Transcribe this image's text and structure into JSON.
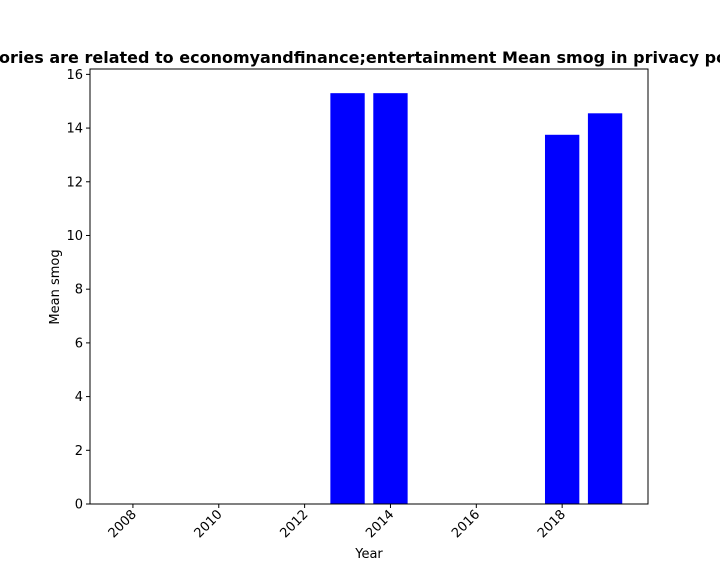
{
  "chart_data": {
    "type": "bar",
    "title": "Categories are related to economyandfinance;entertainment Mean smog in privacy policies",
    "xlabel": "Year",
    "ylabel": "Mean smog",
    "x": [
      2013,
      2014,
      2018,
      2019
    ],
    "values": [
      15.3,
      15.3,
      13.75,
      14.55
    ],
    "xlim": [
      2007.0,
      2020.0
    ],
    "ylim": [
      0,
      16.2
    ],
    "xticks": [
      2008,
      2010,
      2012,
      2014,
      2016,
      2018
    ],
    "yticks": [
      0,
      2,
      4,
      6,
      8,
      10,
      12,
      14,
      16
    ],
    "bar_color": "#0000ff",
    "grid": false,
    "legend": "none"
  }
}
